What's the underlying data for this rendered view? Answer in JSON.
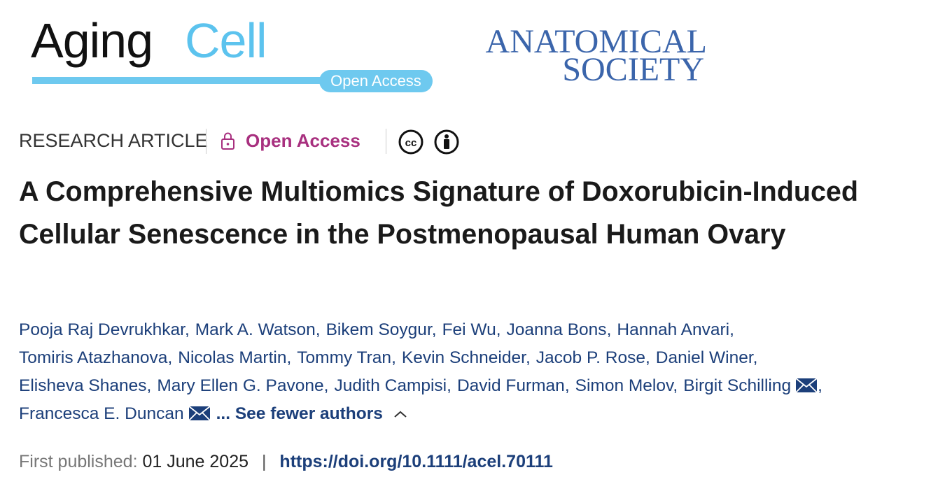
{
  "journal_logo": {
    "name_part1": "Aging",
    "name_part2": "Cell",
    "badge": "Open Access"
  },
  "society_logo": {
    "line1": "ANATOMICAL",
    "line2": "SOCIETY"
  },
  "article_type": "RESEARCH ARTICLE",
  "access": "Open Access",
  "title": "A Comprehensive Multiomics Signature of Doxorubicin-Induced Cellular Senescence in the Postmenopausal Human Ovary",
  "authors": {
    "separator": ",",
    "lines": [
      [
        {
          "name": "Pooja Raj Devrukhkar"
        },
        {
          "name": "Mark A. Watson"
        },
        {
          "name": "Bikem Soygur"
        },
        {
          "name": "Fei Wu"
        },
        {
          "name": "Joanna Bons"
        },
        {
          "name": "Hannah Anvari"
        }
      ],
      [
        {
          "name": "Tomiris Atazhanova"
        },
        {
          "name": "Nicolas Martin"
        },
        {
          "name": "Tommy Tran"
        },
        {
          "name": "Kevin Schneider"
        },
        {
          "name": "Jacob P. Rose"
        },
        {
          "name": "Daniel Winer"
        }
      ],
      [
        {
          "name": "Elisheva Shanes"
        },
        {
          "name": "Mary Ellen G. Pavone"
        },
        {
          "name": "Judith Campisi"
        },
        {
          "name": "David Furman"
        },
        {
          "name": "Simon Melov"
        },
        {
          "name": "Birgit Schilling",
          "email": true
        }
      ],
      [
        {
          "name": "Francesca E. Duncan",
          "email": true
        }
      ]
    ],
    "toggle": "... See fewer authors"
  },
  "publication": {
    "label": "First published:",
    "date": "01 June 2025",
    "divider": "|",
    "doi": "https://doi.org/10.1111/acel.70111"
  }
}
